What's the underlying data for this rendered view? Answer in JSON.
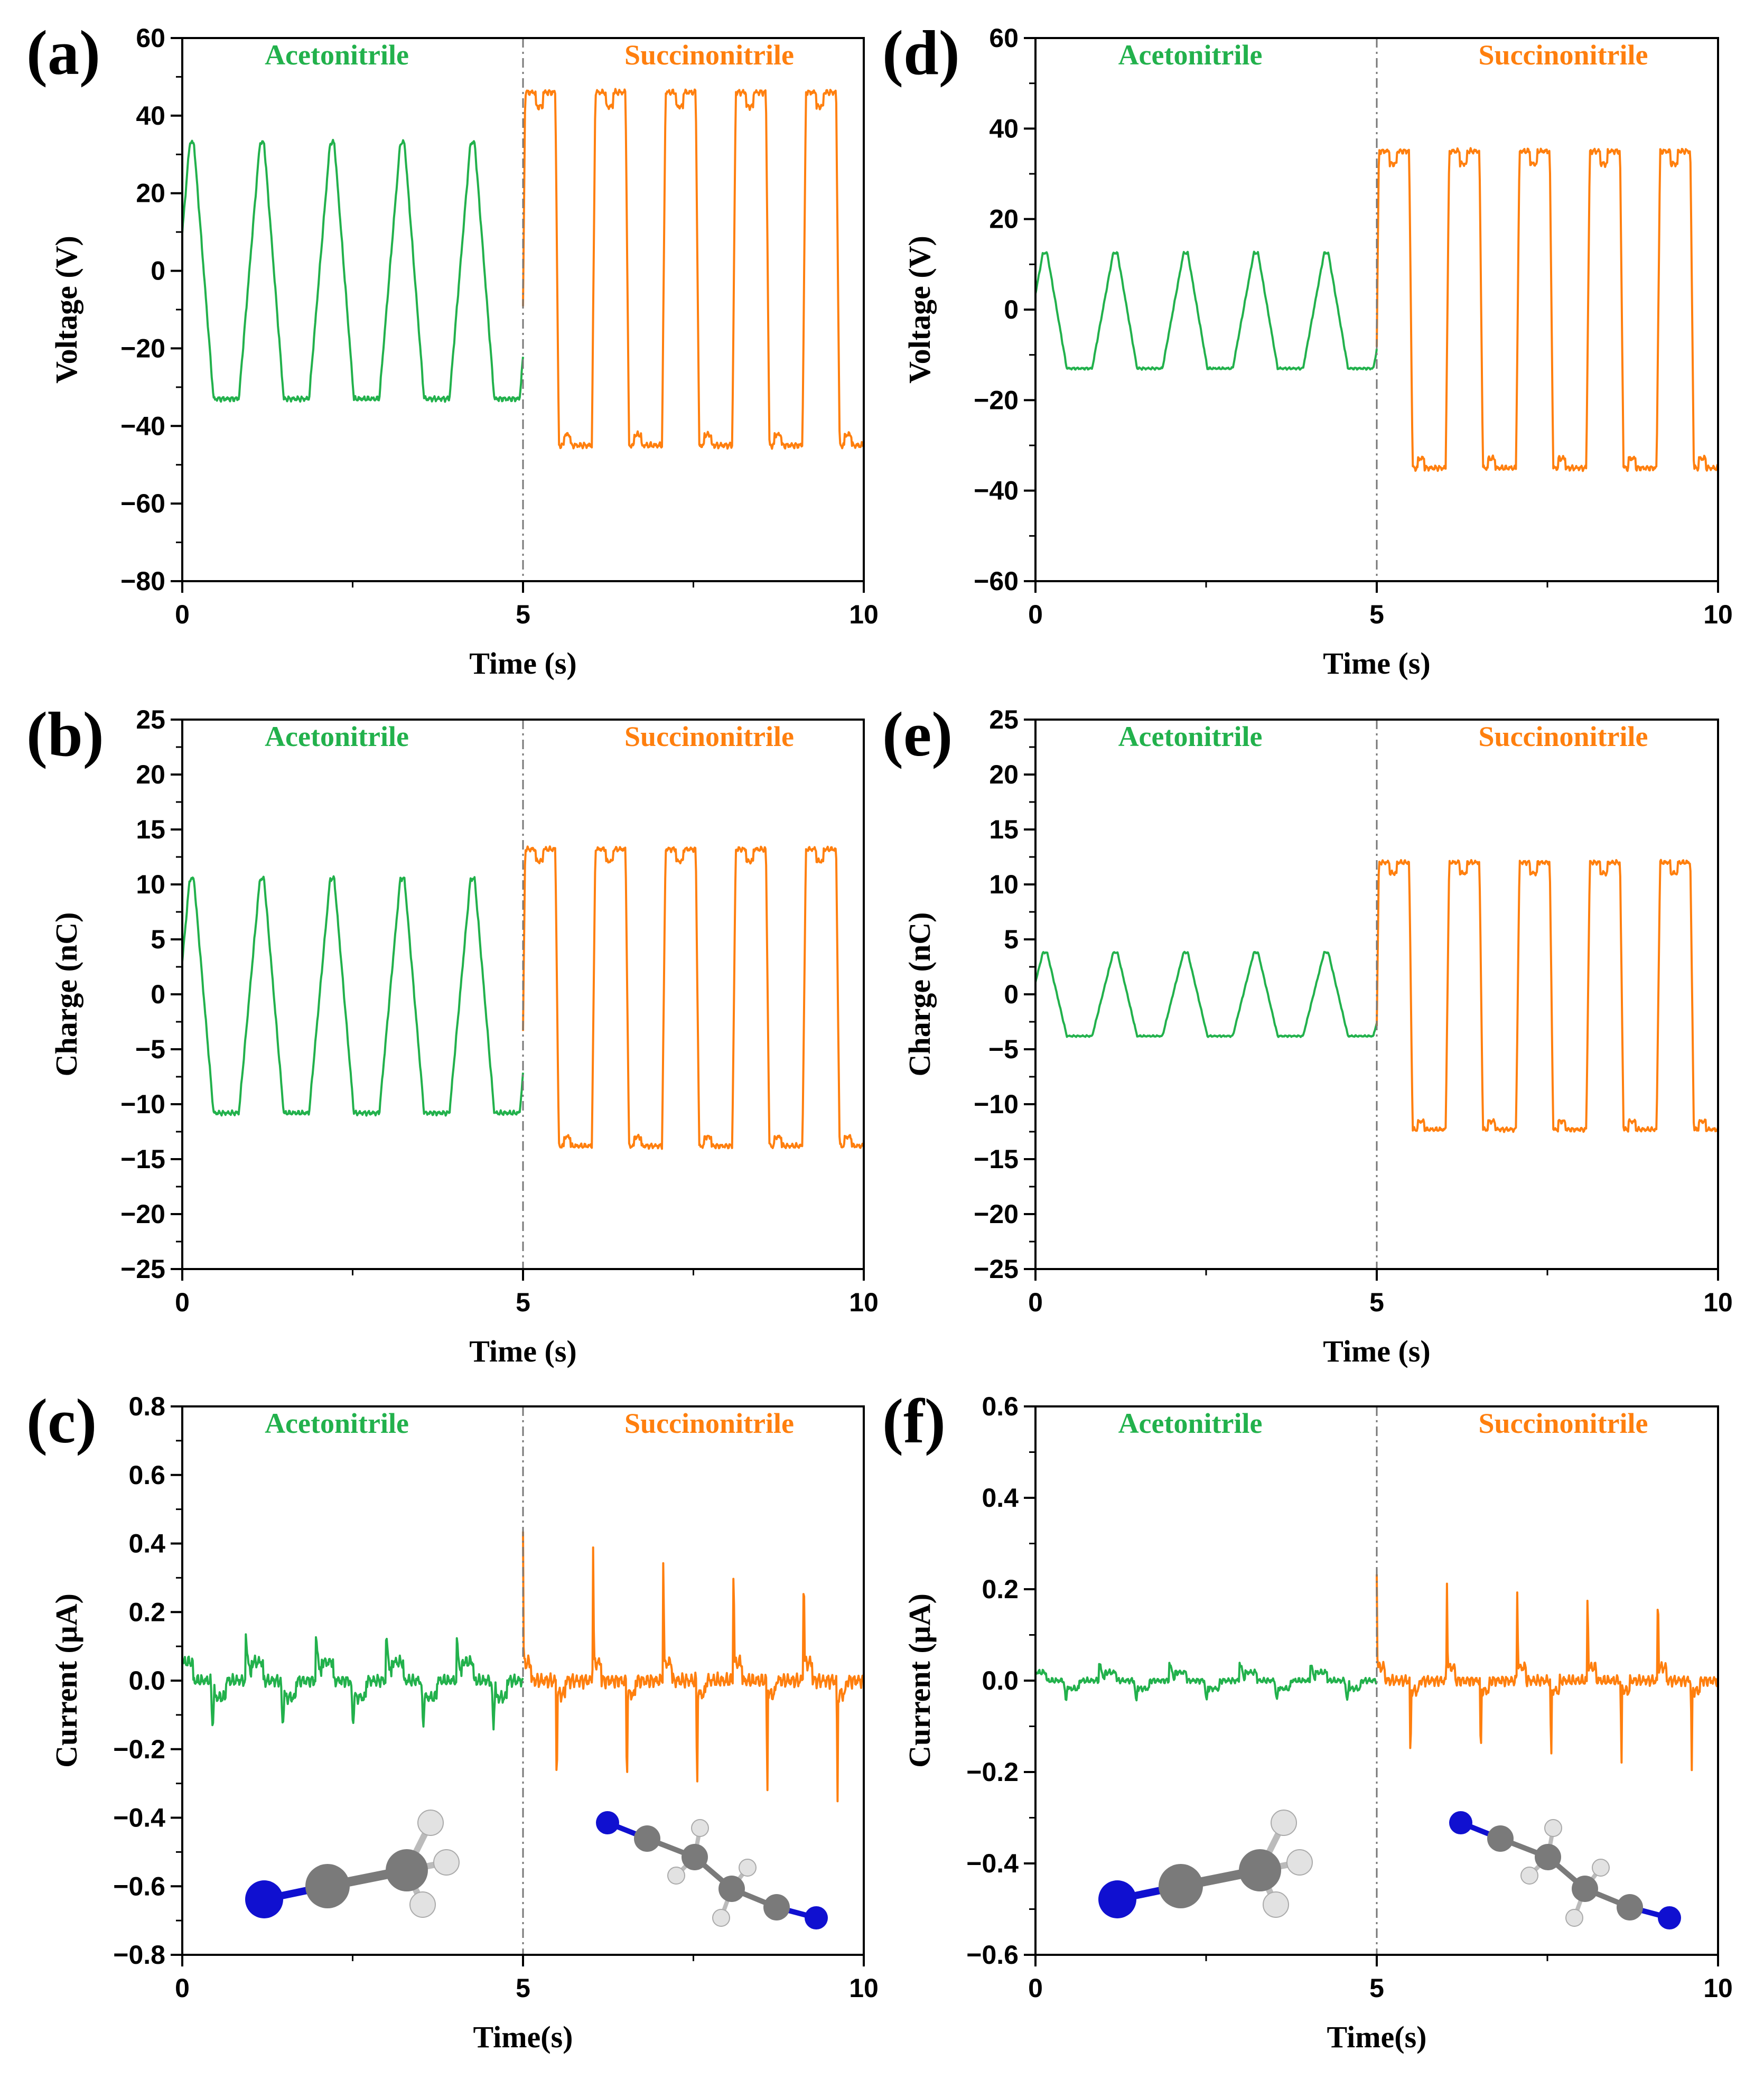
{
  "colors": {
    "acetonitrile": "#22b14c",
    "succinonitrile": "#ff7f0e",
    "nitrogen": "#1010d0",
    "carbon": "#7a7a7a",
    "hydrogen": "#e2e2e2"
  },
  "chart_data": [
    {
      "type": "line",
      "panel": "(a)",
      "title": "",
      "xlabel": "Time (s)",
      "ylabel": "Voltage (V)",
      "xlim": [
        0,
        10
      ],
      "ylim": [
        -80,
        60
      ],
      "x_ticks": [
        "0",
        "5",
        "10"
      ],
      "y_ticks": [
        "−80",
        "−60",
        "−40",
        "−20",
        "0",
        "20",
        "40",
        "60"
      ],
      "series": [
        {
          "name": "Acetonitrile",
          "x_range": [
            0,
            5
          ],
          "period_s": 1.03,
          "shape": "sawtooth",
          "max": 33,
          "min": -33
        },
        {
          "name": "Succinonitrile",
          "x_range": [
            5,
            10
          ],
          "period_s": 1.03,
          "shape": "square",
          "max": 46,
          "min": -45
        }
      ],
      "annotation": "vertical divider at t = 5 s"
    },
    {
      "type": "line",
      "panel": "(b)",
      "title": "",
      "xlabel": "Time (s)",
      "ylabel": "Charge (nC)",
      "xlim": [
        0,
        10
      ],
      "ylim": [
        -25,
        25
      ],
      "x_ticks": [
        "0",
        "5",
        "10"
      ],
      "y_ticks": [
        "−25",
        "−20",
        "−15",
        "−10",
        "−5",
        "0",
        "5",
        "10",
        "15",
        "20",
        "25"
      ],
      "series": [
        {
          "name": "Acetonitrile",
          "x_range": [
            0,
            5
          ],
          "period_s": 1.03,
          "shape": "sawtooth",
          "max": 10.5,
          "min": -10.8
        },
        {
          "name": "Succinonitrile",
          "x_range": [
            5,
            10
          ],
          "period_s": 1.03,
          "shape": "square",
          "max": 13.2,
          "min": -13.8
        }
      ],
      "annotation": "vertical divider at t = 5 s"
    },
    {
      "type": "line",
      "panel": "(c)",
      "title": "",
      "xlabel": "Time(s)",
      "ylabel": "Current (μA)",
      "xlim": [
        0,
        10
      ],
      "ylim": [
        -0.8,
        0.8
      ],
      "x_ticks": [
        "0",
        "5",
        "10"
      ],
      "y_ticks": [
        "−0.8",
        "−0.6",
        "−0.4",
        "−0.2",
        "0.0",
        "0.2",
        "0.4",
        "0.6",
        "0.8"
      ],
      "series": [
        {
          "name": "Acetonitrile",
          "x_range": [
            0,
            5
          ],
          "period_s": 1.03,
          "shape": "small-pulses",
          "max": 0.12,
          "min": -0.14
        },
        {
          "name": "Succinonitrile",
          "x_range": [
            5,
            10
          ],
          "period_s": 1.03,
          "shape": "spikes",
          "max": 0.43,
          "min": -0.39
        }
      ],
      "annotation": "vertical divider at t = 5 s; ball-and-stick models of acetonitrile and succinonitrile"
    },
    {
      "type": "line",
      "panel": "(d)",
      "title": "",
      "xlabel": "Time (s)",
      "ylabel": "Voltage (V)",
      "xlim": [
        0,
        10
      ],
      "ylim": [
        -60,
        60
      ],
      "x_ticks": [
        "0",
        "5",
        "10"
      ],
      "y_ticks": [
        "−60",
        "−40",
        "−20",
        "0",
        "20",
        "40",
        "60"
      ],
      "series": [
        {
          "name": "Acetonitrile",
          "x_range": [
            0,
            5
          ],
          "period_s": 1.03,
          "shape": "sawtooth",
          "max": 12.5,
          "min": -13
        },
        {
          "name": "Succinonitrile",
          "x_range": [
            5,
            10
          ],
          "period_s": 1.03,
          "shape": "square",
          "max": 35,
          "min": -35
        }
      ],
      "annotation": "vertical divider at t = 5 s"
    },
    {
      "type": "line",
      "panel": "(e)",
      "title": "",
      "xlabel": "Time (s)",
      "ylabel": "Charge (nC)",
      "xlim": [
        0,
        10
      ],
      "ylim": [
        -25,
        25
      ],
      "x_ticks": [
        "0",
        "5",
        "10"
      ],
      "y_ticks": [
        "−25",
        "−20",
        "−15",
        "−10",
        "−5",
        "0",
        "5",
        "10",
        "15",
        "20",
        "25"
      ],
      "series": [
        {
          "name": "Acetonitrile",
          "x_range": [
            0,
            5
          ],
          "period_s": 1.03,
          "shape": "sawtooth",
          "max": 3.8,
          "min": -3.8
        },
        {
          "name": "Succinonitrile",
          "x_range": [
            5,
            10
          ],
          "period_s": 1.03,
          "shape": "square",
          "max": 12,
          "min": -12.3
        }
      ],
      "annotation": "vertical divider at t = 5 s"
    },
    {
      "type": "line",
      "panel": "(f)",
      "title": "",
      "xlabel": "Time(s)",
      "ylabel": "Current (μA)",
      "xlim": [
        0,
        10
      ],
      "ylim": [
        -0.6,
        0.6
      ],
      "x_ticks": [
        "0",
        "5",
        "10"
      ],
      "y_ticks": [
        "−0.6",
        "−0.4",
        "−0.2",
        "0.0",
        "0.2",
        "0.4",
        "0.6"
      ],
      "series": [
        {
          "name": "Acetonitrile",
          "x_range": [
            0,
            5
          ],
          "period_s": 1.03,
          "shape": "small-pulses",
          "max": 0.04,
          "min": -0.05
        },
        {
          "name": "Succinonitrile",
          "x_range": [
            5,
            10
          ],
          "period_s": 1.03,
          "shape": "spikes",
          "max": 0.24,
          "min": -0.22
        }
      ],
      "annotation": "vertical divider at t = 5 s; ball-and-stick models of acetonitrile and succinonitrile"
    }
  ]
}
